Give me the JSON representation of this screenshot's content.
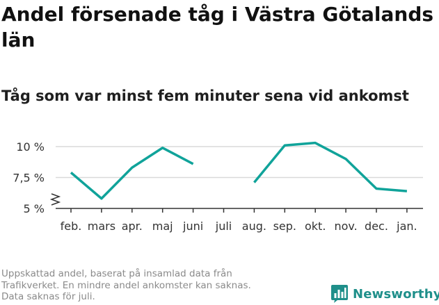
{
  "header": {
    "title": "Andel försenade tåg i Västra Götalands län",
    "subtitle": "Tåg som var minst fem minuter sena vid ankomst"
  },
  "colors": {
    "line": "#10a39a",
    "grid": "#d9d9d9",
    "axis": "#333333",
    "brand": "#1f8f8a"
  },
  "chart_data": {
    "type": "line",
    "categories": [
      "feb.",
      "mars",
      "apr.",
      "maj",
      "juni",
      "juli",
      "aug.",
      "sep.",
      "okt.",
      "nov.",
      "dec.",
      "jan."
    ],
    "series": [
      {
        "values": [
          7.9,
          5.8,
          8.3,
          9.9,
          8.6,
          null,
          7.1,
          10.1,
          10.3,
          9.0,
          6.6,
          6.4
        ]
      }
    ],
    "y_ticks": [
      5,
      7.5,
      10
    ],
    "y_tick_labels": [
      "5 %",
      "7,5 %",
      "10 %"
    ],
    "ylim": [
      5,
      10.5
    ],
    "y_axis_break": true,
    "grid": true,
    "xlabel": "",
    "ylabel": ""
  },
  "footer": {
    "note_lines": [
      "Uppskattad andel, baserat på insamlad data från",
      "Trafikverket. En mindre andel ankomster kan saknas.",
      "Data saknas för juli."
    ],
    "brand": "Newsworthy"
  }
}
